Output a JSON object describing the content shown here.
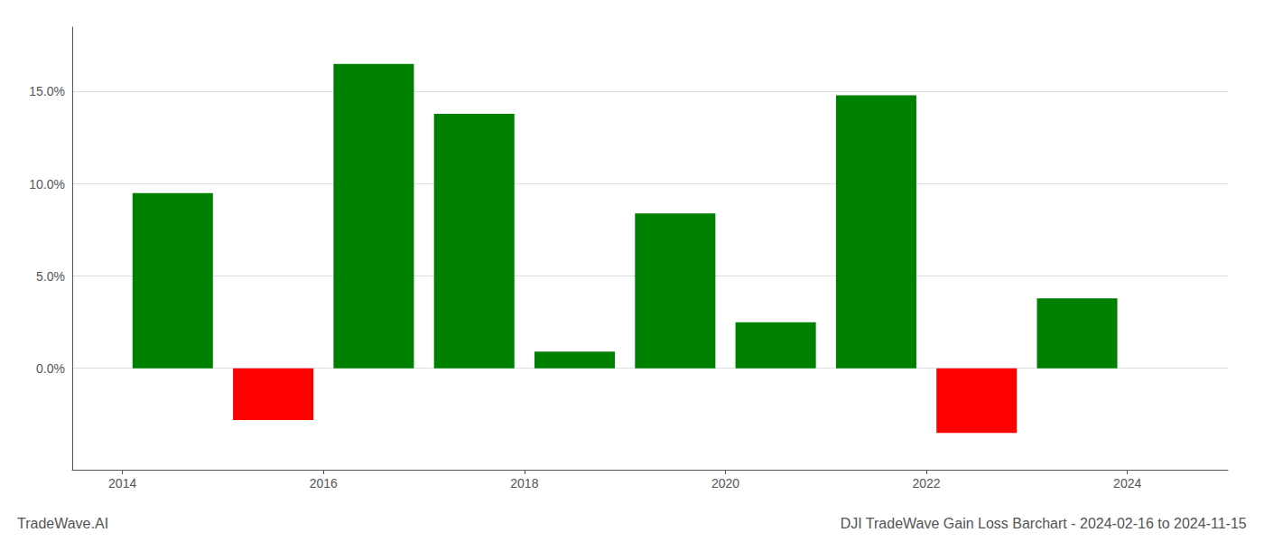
{
  "chart_data": {
    "type": "bar",
    "title": "DJI TradeWave Gain Loss Barchart - 2024-02-16 to 2024-11-15",
    "annotations": [
      "TradeWave.AI"
    ],
    "x": [
      2014.5,
      2015.5,
      2016.5,
      2017.5,
      2018.5,
      2019.5,
      2020.5,
      2021.5,
      2022.5,
      2023.5
    ],
    "values": [
      9.5,
      -2.8,
      16.5,
      13.8,
      0.9,
      8.4,
      2.5,
      14.8,
      -3.5,
      3.8
    ],
    "colors": [
      "#008000",
      "#ff0000",
      "#008000",
      "#008000",
      "#008000",
      "#008000",
      "#008000",
      "#008000",
      "#ff0000",
      "#008000"
    ],
    "xlim": [
      2013.5,
      2025.0
    ],
    "xticks": [
      2014,
      2016,
      2018,
      2020,
      2022,
      2024
    ],
    "ylim": [
      -5.5,
      18.5
    ],
    "yticks": [
      {
        "value": 0.0,
        "label": "0.0%"
      },
      {
        "value": 5.0,
        "label": "5.0%"
      },
      {
        "value": 10.0,
        "label": "10.0%"
      },
      {
        "value": 15.0,
        "label": "15.0%"
      }
    ],
    "grid": true
  }
}
